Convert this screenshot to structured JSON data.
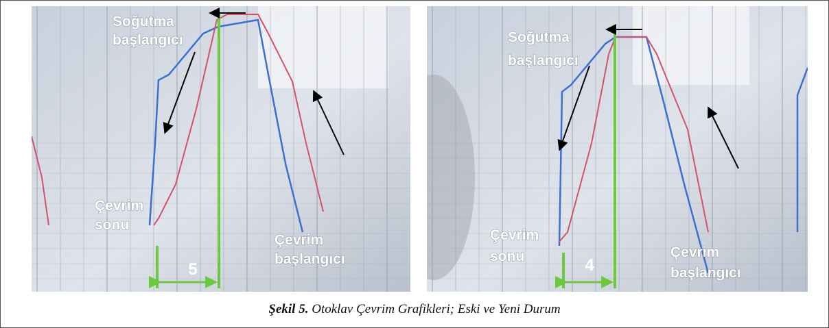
{
  "figure": {
    "panels": [
      {
        "labels": [
          {
            "lines": [
              "Soğutma",
              "başlangıcı"
            ]
          },
          {
            "lines": [
              "Çevrim",
              "sonu"
            ]
          },
          {
            "lines": [
              "Çevrim",
              "başlangıcı"
            ]
          }
        ],
        "duration": 5
      },
      {
        "labels": [
          {
            "lines": [
              "Soğutma",
              "başlangıcı"
            ]
          },
          {
            "lines": [
              "Çevrim",
              "sonu"
            ]
          },
          {
            "lines": [
              "Çevrim",
              "başlangıcı"
            ]
          }
        ],
        "duration": 4
      }
    ],
    "caption": {
      "label": "Şekil 5.",
      "text": "Otoklav Çevrim Grafikleri; Eski ve Yeni Durum"
    }
  }
}
